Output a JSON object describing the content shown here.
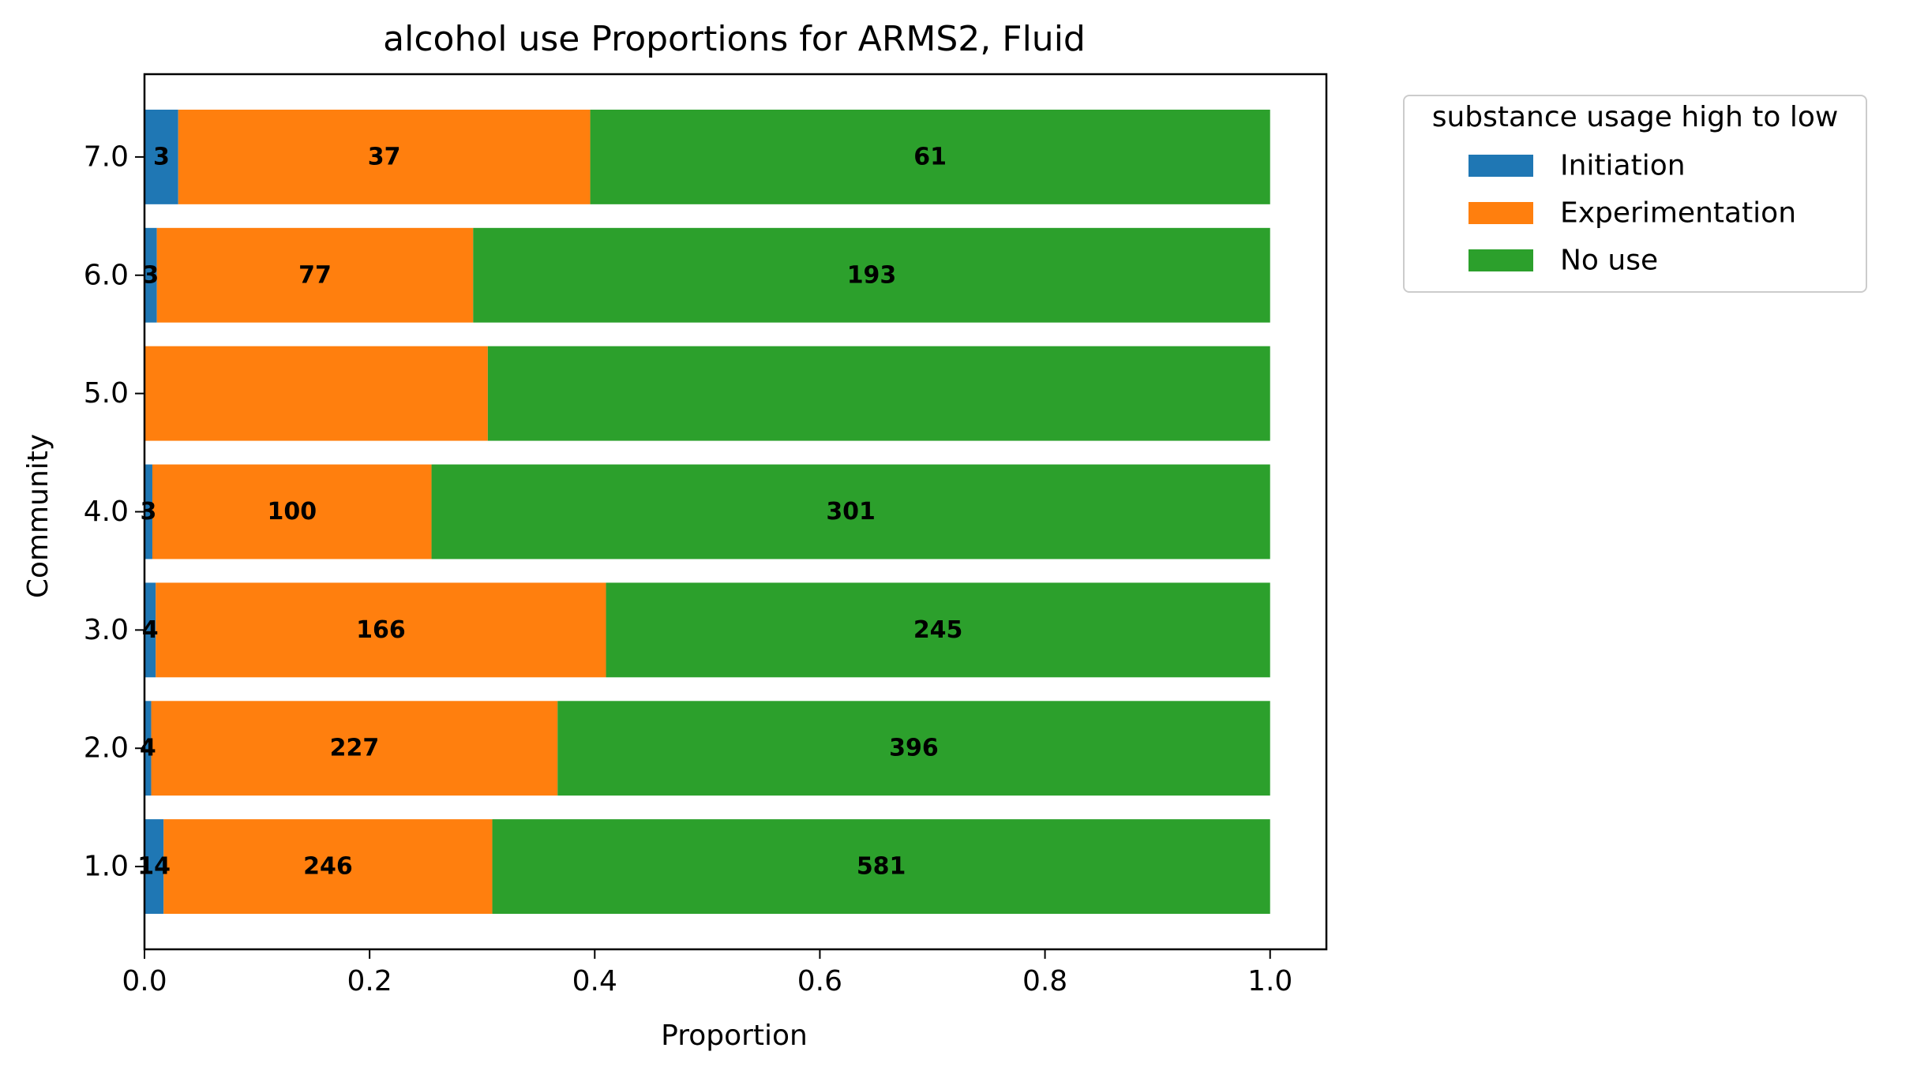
{
  "chart_data": {
    "type": "bar",
    "orientation": "horizontal",
    "stacked": true,
    "title": "alcohol use Proportions for ARMS2, Fluid",
    "xlabel": "Proportion",
    "ylabel": "Community",
    "xlim": [
      0,
      1.05
    ],
    "xticks": [
      "0.0",
      "0.2",
      "0.4",
      "0.6",
      "0.8",
      "1.0"
    ],
    "categories": [
      "1.0",
      "2.0",
      "3.0",
      "4.0",
      "5.0",
      "6.0",
      "7.0"
    ],
    "legend": {
      "title": "substance usage high to low",
      "placement": "outside-top-right"
    },
    "series": [
      {
        "name": "Initiation",
        "color": "#1f77b4",
        "values": [
          0.017,
          0.006,
          0.01,
          0.007,
          0.0,
          0.011,
          0.03
        ],
        "labels": [
          "14",
          "4",
          "4",
          "3",
          "",
          "3",
          "3"
        ]
      },
      {
        "name": "Experimentation",
        "color": "#ff7f0e",
        "values": [
          0.292,
          0.361,
          0.4,
          0.248,
          0.305,
          0.281,
          0.366
        ],
        "labels": [
          "246",
          "227",
          "166",
          "100",
          "",
          "77",
          "37"
        ]
      },
      {
        "name": "No use",
        "color": "#2ca02c",
        "values": [
          0.691,
          0.633,
          0.59,
          0.745,
          0.695,
          0.708,
          0.604
        ],
        "labels": [
          "581",
          "396",
          "245",
          "301",
          "",
          "193",
          "61"
        ]
      }
    ]
  }
}
